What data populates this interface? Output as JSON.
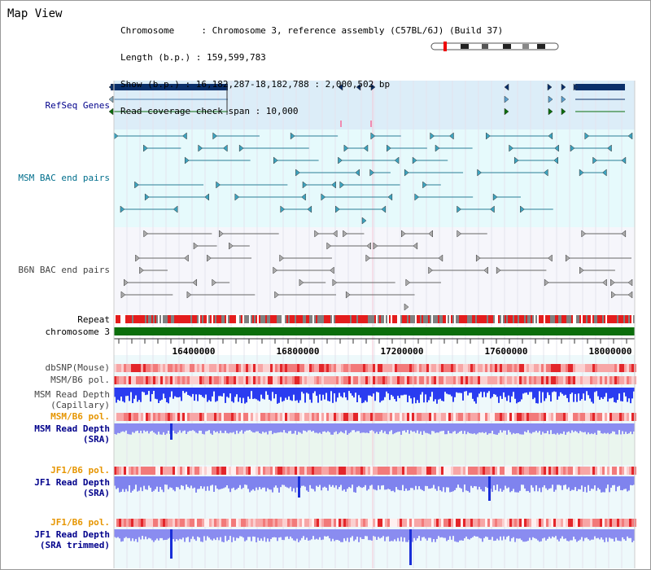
{
  "header": {
    "title": "Map View"
  },
  "info": {
    "chromosome": "Chromosome     : Chromosome 3, reference assembly (C57BL/6J) (Build 37)",
    "length": "Length (b.p.) : 159,599,783",
    "show": "Show (b.p.) : 16,182,287-18,182,788 : 2,000,502 bp",
    "coverage": "Read coverage check span : 10,000"
  },
  "tracks": {
    "refseq": "RefSeq Genes",
    "msm_bac": "MSM BAC end pairs",
    "b6n_bac": "B6N BAC end pairs",
    "repeat": "Repeat",
    "chromosome": "chromosome 3",
    "dbsnp": "dbSNP(Mouse)",
    "msm_b6_pol_1": "MSM/B6 pol.",
    "msm_depth_cap_1": "MSM Read Depth",
    "msm_depth_cap_2": "(Capillary)",
    "msm_b6_pol_2": "MSM/B6 pol.",
    "msm_depth_sra_1": "MSM Read Depth",
    "msm_depth_sra_2": "(SRA)",
    "jf1_b6_pol_1": "JF1/B6 pol.",
    "jf1_depth_sra_1": "JF1 Read Depth",
    "jf1_depth_sra_2": "(SRA)",
    "jf1_b6_pol_2": "JF1/B6 pol.",
    "jf1_depth_trim_1": "JF1 Read Depth",
    "jf1_depth_trim_2": "(SRA trimmed)"
  },
  "axis": {
    "ticks": [
      "16400000",
      "16800000",
      "17200000",
      "17600000",
      "18000000"
    ]
  },
  "colors": {
    "refseq_bg": "#dcedf8",
    "msm_bg": "#e6fafc",
    "b6n_bg": "#f6f6fb",
    "repeat_red": "#e41d1d",
    "repeat_gray": "#808080",
    "chromosome_green": "#0b6e0b",
    "depth_blue": "#2230e0",
    "label_blue": "#00008b",
    "label_orange": "#e69500",
    "label_teal": "#006e8c",
    "label_gray": "#444444"
  }
}
